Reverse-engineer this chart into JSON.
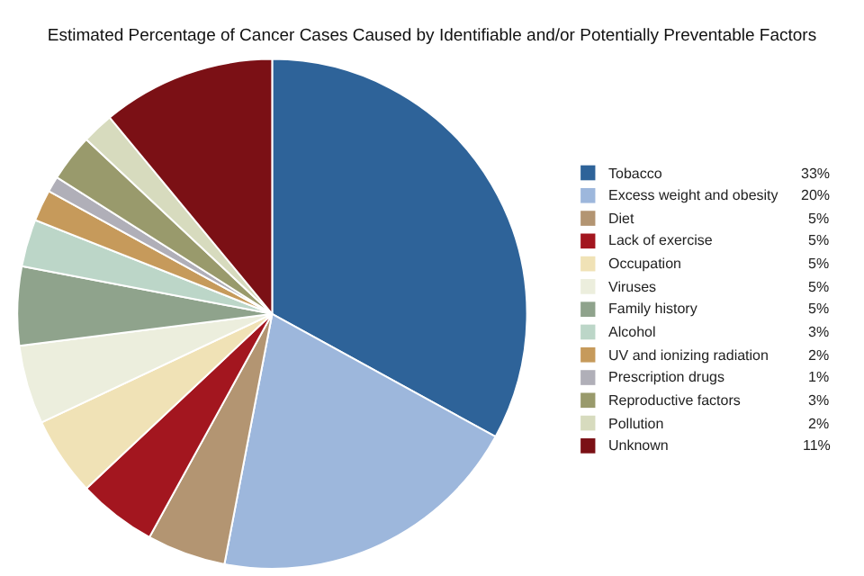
{
  "chart_data": {
    "type": "pie",
    "title": "Estimated Percentage of Cancer Cases Caused by Identifiable and/or Potentially Preventable Factors",
    "categories": [
      "Tobacco",
      "Excess weight and obesity",
      "Diet",
      "Lack of exercise",
      "Occupation",
      "Viruses",
      "Family history",
      "Alcohol",
      "UV and ionizing radiation",
      "Prescription drugs",
      "Reproductive factors",
      "Pollution",
      "Unknown"
    ],
    "values": [
      33,
      20,
      5,
      5,
      5,
      5,
      5,
      3,
      2,
      1,
      3,
      2,
      11
    ],
    "value_labels": [
      "33%",
      "20%",
      "5%",
      "5%",
      "5%",
      "5%",
      "5%",
      "3%",
      "2%",
      "1%",
      "3%",
      "2%",
      "11%"
    ],
    "colors": [
      "#2e6399",
      "#9db7dc",
      "#b39572",
      "#a3161f",
      "#f0e2b6",
      "#eceedd",
      "#8fa38c",
      "#bcd6c8",
      "#c69a5b",
      "#b0afb8",
      "#999a6c",
      "#d7dbbe",
      "#7b1015"
    ],
    "legend": "right"
  }
}
